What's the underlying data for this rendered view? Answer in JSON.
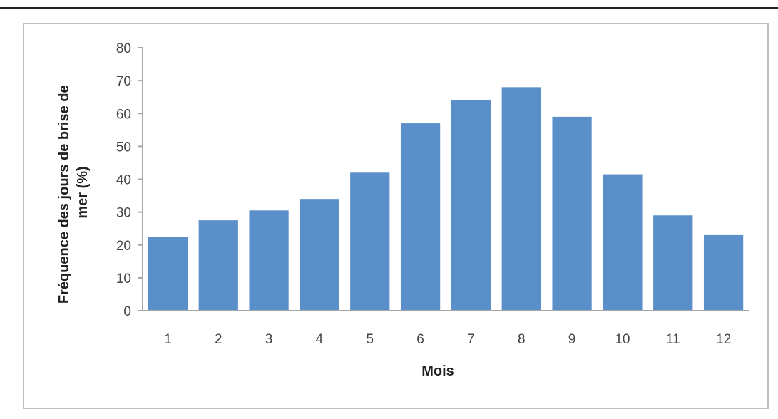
{
  "chart_data": {
    "type": "bar",
    "categories": [
      "1",
      "2",
      "3",
      "4",
      "5",
      "6",
      "7",
      "8",
      "9",
      "10",
      "11",
      "12"
    ],
    "series": [
      {
        "values": [
          22.5,
          27.5,
          30.5,
          34,
          42,
          57,
          64,
          68,
          59,
          41.5,
          29,
          23
        ]
      }
    ],
    "xlabel": "Mois",
    "ylabel_lines": [
      "Fréquence des jours de brise de",
      "mer (%)"
    ],
    "ylim": [
      0,
      80
    ],
    "yticks": [
      0,
      10,
      20,
      30,
      40,
      50,
      60,
      70,
      80
    ],
    "grid": false,
    "legend": "none",
    "colors": {
      "bar": "#5b8fc9",
      "axis": "#a6a6a6"
    }
  }
}
